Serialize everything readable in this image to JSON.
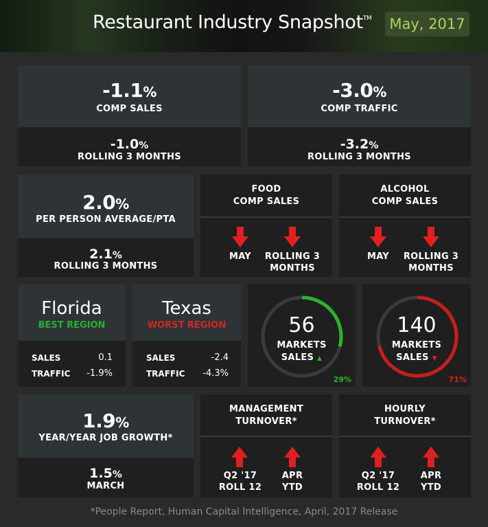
{
  "header": {
    "title": "Restaurant Industry Snapshot",
    "tm": "TM",
    "date": "May, 2017"
  },
  "comp_sales": {
    "value": "-1.1",
    "pct": "%",
    "label": "COMP SALES",
    "rolling_value": "-1.0",
    "rolling_label": "ROLLING 3 MONTHS"
  },
  "comp_traffic": {
    "value": "-3.0",
    "pct": "%",
    "label": "COMP TRAFFIC",
    "rolling_value": "-3.2",
    "rolling_label": "ROLLING 3 MONTHS"
  },
  "ppa": {
    "value": "2.0",
    "pct": "%",
    "label": "PER PERSON AVERAGE/PTA",
    "rolling_value": "2.1",
    "rolling_label": "ROLLING 3 MONTHS"
  },
  "food": {
    "title_1": "FOOD",
    "title_2": "COMP SALES",
    "may": "MAY",
    "roll_1": "ROLLING 3",
    "roll_2": "MONTHS"
  },
  "alcohol": {
    "title_1": "ALCOHOL",
    "title_2": "COMP SALES",
    "may": "MAY",
    "roll_1": "ROLLING 3",
    "roll_2": "MONTHS"
  },
  "florida": {
    "name": "Florida",
    "tag": "BEST REGION",
    "sales_label": "SALES",
    "sales_value": "0.1",
    "traffic_label": "TRAFFIC",
    "traffic_value": "-1.9%"
  },
  "texas": {
    "name": "Texas",
    "tag": "WORST REGION",
    "sales_label": "SALES",
    "sales_value": "-2.4",
    "traffic_label": "TRAFFIC",
    "traffic_value": "-4.3%"
  },
  "markets_up": {
    "count": "56",
    "label_1": "MARKETS",
    "label_2": "SALES",
    "percent": "29%",
    "fraction": 0.29,
    "color": "#29b42f"
  },
  "markets_down": {
    "count": "140",
    "label_1": "MARKETS",
    "label_2": "SALES",
    "percent": "71%",
    "fraction": 0.71,
    "color": "#c81e1e"
  },
  "job_growth": {
    "value": "1.9",
    "pct": "%",
    "label": "YEAR/YEAR JOB GROWTH*",
    "sub_value": "1.5",
    "sub_label": "MARCH"
  },
  "mgmt_turnover": {
    "title_1": "MANAGEMENT",
    "title_2": "TURNOVER*",
    "a_1": "Q2 '17",
    "a_2": "ROLL 12",
    "b_1": "APR",
    "b_2": "YTD"
  },
  "hourly_turnover": {
    "title_1": "HOURLY",
    "title_2": "TURNOVER*",
    "a_1": "Q2 '17",
    "a_2": "ROLL 12",
    "b_1": "APR",
    "b_2": "YTD"
  },
  "footer": {
    "text": "*People Report, Human Capital Intelligence, April, 2017 Release"
  },
  "colors": {
    "up": "#29b42f",
    "down": "#e02020",
    "badge_text": "#a6d75b"
  }
}
